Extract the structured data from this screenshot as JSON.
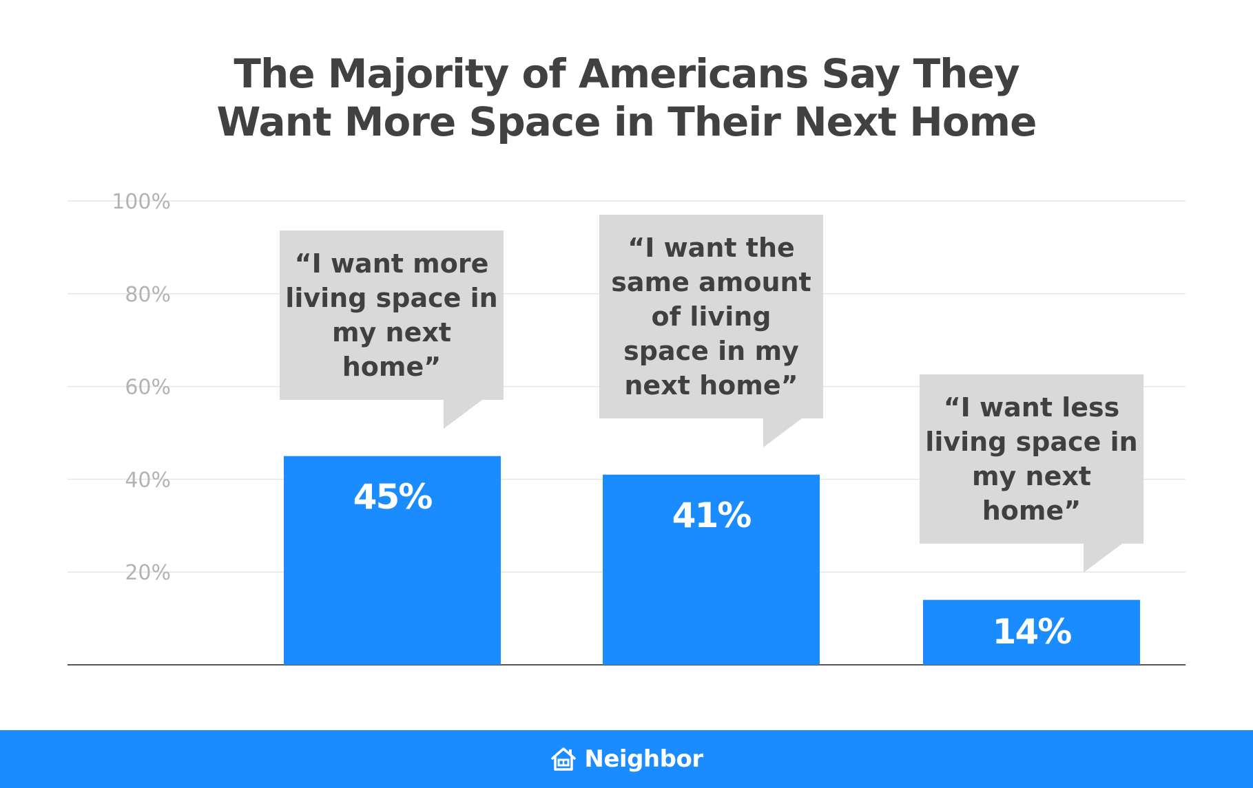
{
  "chart_data": {
    "type": "bar",
    "title": [
      "The Majority of Americans Say They",
      "Want More Space in Their Next Home"
    ],
    "categories": [
      "“I want more living space in my next home”",
      "“I want the same amount of living space in my next home”",
      "“I want less living space in my next home”"
    ],
    "values": [
      45,
      41,
      14
    ],
    "value_labels": [
      "45%",
      "41%",
      "14%"
    ],
    "ylim": [
      0,
      100
    ],
    "yticks": [
      20,
      40,
      60,
      80,
      100
    ],
    "ytick_labels": [
      "20%",
      "40%",
      "60%",
      "80%",
      "100%"
    ],
    "grid": true,
    "bar_color": "#1a8cff",
    "callout_color": "#d9d9d9",
    "grid_color": "#e6e6e6"
  },
  "footer": {
    "brand": "Neighbor",
    "brand_icon": "house-icon",
    "background": "#1a8cff"
  }
}
